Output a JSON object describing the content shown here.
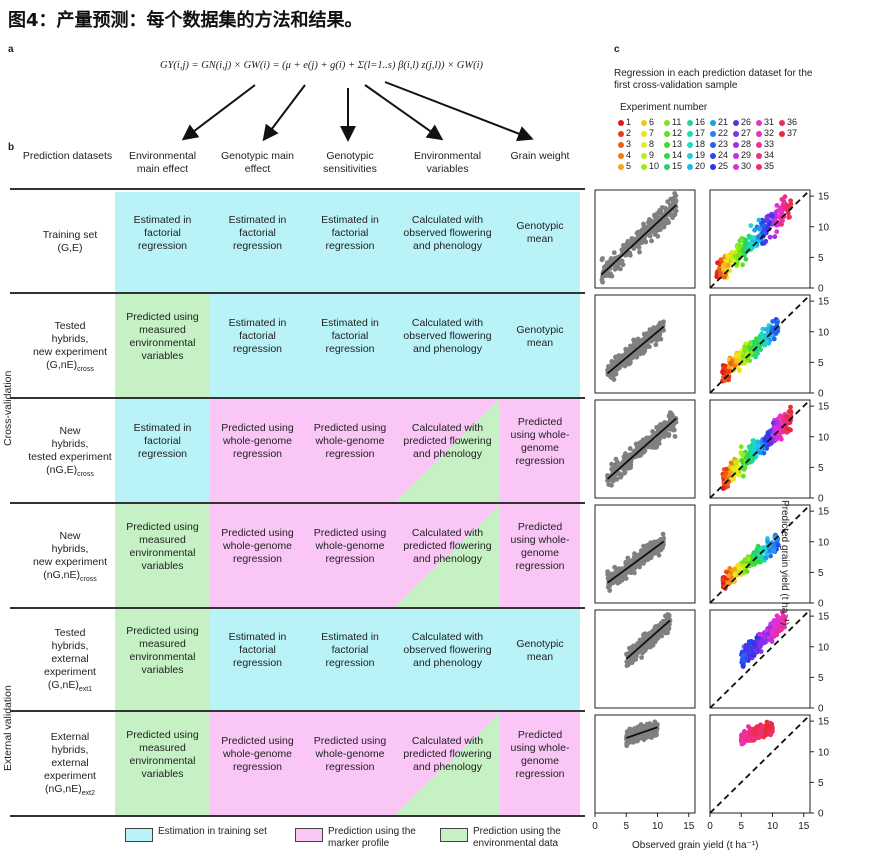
{
  "title": "图4：产量预测：每个数据集的方法和结果。",
  "panel_labels": {
    "a": "a",
    "b": "b",
    "c": "c"
  },
  "equation": "GY(i,j) = GN(i,j) × GW(i) = (μ + e(j) + g(i) + Σ(l=1..s) β(i,l) z(j,l)) × GW(i)",
  "columns": [
    "Prediction datasets",
    "Environmental main effect",
    "Genotypic main effect",
    "Genotypic sensitivities",
    "Environmental variables",
    "Grain weight"
  ],
  "rows": [
    {
      "label": [
        "Training set",
        "(G,E)"
      ],
      "cells": [
        "Estimated in factorial regression",
        "Estimated in factorial regression",
        "Estimated in factorial regression",
        "Calculated with observed flowering and phenology",
        "Genotypic mean"
      ],
      "colors": [
        "cyan",
        "cyan",
        "cyan",
        "cyan",
        "cyan"
      ]
    },
    {
      "label": [
        "Tested",
        "hybrids,",
        "new experiment",
        "(G,nE)cross"
      ],
      "cells": [
        "Predicted using measured environmental variables",
        "Estimated in factorial regression",
        "Estimated in factorial regression",
        "Calculated with observed flowering and phenology",
        "Genotypic mean"
      ],
      "colors": [
        "green",
        "cyan",
        "cyan",
        "cyan",
        "cyan"
      ]
    },
    {
      "label": [
        "New",
        "hybrids,",
        "tested experiment",
        "(nG,E)cross"
      ],
      "cells": [
        "Estimated in factorial regression",
        "Predicted using whole-genome regression",
        "Predicted using whole-genome regression",
        "Calculated with predicted flowering and phenology",
        "Predicted using whole-genome regression"
      ],
      "colors": [
        "cyan",
        "pink",
        "pink",
        "pink-green",
        "pink"
      ]
    },
    {
      "label": [
        "New",
        "hybrids,",
        "new experiment",
        "(nG,nE)cross"
      ],
      "cells": [
        "Predicted using measured environmental variables",
        "Predicted using whole-genome regression",
        "Predicted using whole-genome regression",
        "Calculated with predicted flowering and phenology",
        "Predicted using whole-genome regression"
      ],
      "colors": [
        "green",
        "pink",
        "pink",
        "pink-green",
        "pink"
      ]
    },
    {
      "label": [
        "Tested",
        "hybrids,",
        "external",
        "experiment",
        "(G,nE)ext1"
      ],
      "cells": [
        "Predicted using measured environmental variables",
        "Estimated in factorial regression",
        "Estimated in factorial regression",
        "Calculated with observed flowering and phenology",
        "Genotypic mean"
      ],
      "colors": [
        "green",
        "cyan",
        "cyan",
        "cyan",
        "cyan"
      ]
    },
    {
      "label": [
        "External",
        "hybrids,",
        "external",
        "experiment",
        "(nG,nE)ext2"
      ],
      "cells": [
        "Predicted using measured environmental variables",
        "Predicted using whole-genome regression",
        "Predicted using whole-genome regression",
        "Calculated with predicted flowering and phenology",
        "Predicted using whole-genome regression"
      ],
      "colors": [
        "green",
        "pink",
        "pink",
        "pink-green",
        "pink"
      ]
    }
  ],
  "side_labels": {
    "cross": "Cross-validation",
    "external": "External validation"
  },
  "legend": [
    {
      "label": "Estimation in training set",
      "color": "#b9f3f7"
    },
    {
      "label": "Prediction using the marker profile",
      "color": "#f9c6f5"
    },
    {
      "label": "Prediction using the environmental data",
      "color": "#c6f1c5"
    }
  ],
  "colors": {
    "cyan": "#b9f3f7",
    "pink": "#f9c6f5",
    "green": "#c6f1c5"
  },
  "panel_c": {
    "title": "Regression in each prediction dataset for the first cross-validation sample",
    "experiment_label": "Experiment number",
    "experiments": [
      {
        "n": "1",
        "c": "#e41a1c"
      },
      {
        "n": "2",
        "c": "#e8391a"
      },
      {
        "n": "3",
        "c": "#ef5b14"
      },
      {
        "n": "4",
        "c": "#f47b10"
      },
      {
        "n": "5",
        "c": "#f7a21a"
      },
      {
        "n": "6",
        "c": "#f3c61b"
      },
      {
        "n": "7",
        "c": "#f0e21c"
      },
      {
        "n": "8",
        "c": "#e2f016"
      },
      {
        "n": "9",
        "c": "#bdef17"
      },
      {
        "n": "10",
        "c": "#9dee18"
      },
      {
        "n": "11",
        "c": "#7fe61a"
      },
      {
        "n": "12",
        "c": "#5de21e"
      },
      {
        "n": "13",
        "c": "#3ddc2a"
      },
      {
        "n": "14",
        "c": "#2bd94a"
      },
      {
        "n": "15",
        "c": "#22d66b"
      },
      {
        "n": "16",
        "c": "#20d88f"
      },
      {
        "n": "17",
        "c": "#1fdbae"
      },
      {
        "n": "18",
        "c": "#1ddac9"
      },
      {
        "n": "19",
        "c": "#1ccfe2"
      },
      {
        "n": "20",
        "c": "#1cb8ec"
      },
      {
        "n": "21",
        "c": "#1e9cf0"
      },
      {
        "n": "22",
        "c": "#2280f2"
      },
      {
        "n": "23",
        "c": "#2462f2"
      },
      {
        "n": "24",
        "c": "#2848ef"
      },
      {
        "n": "25",
        "c": "#2f34ea"
      },
      {
        "n": "26",
        "c": "#5a2fe8"
      },
      {
        "n": "27",
        "c": "#8030e8"
      },
      {
        "n": "28",
        "c": "#a230e8"
      },
      {
        "n": "29",
        "c": "#c230e8"
      },
      {
        "n": "30",
        "c": "#dc2fe0"
      },
      {
        "n": "31",
        "c": "#e82fcc"
      },
      {
        "n": "32",
        "c": "#ec2fb3"
      },
      {
        "n": "33",
        "c": "#ee2f98"
      },
      {
        "n": "34",
        "c": "#ef2f80"
      },
      {
        "n": "35",
        "c": "#ef2e68"
      },
      {
        "n": "36",
        "c": "#ed2d50"
      },
      {
        "n": "37",
        "c": "#e82b3a"
      }
    ],
    "x_label": "Observed grain yield (t ha⁻¹)",
    "y_label": "Predicted grain yield (t ha⁻¹)",
    "x_ticks": [
      "0",
      "5",
      "10",
      "15"
    ],
    "y_ticks": [
      "0",
      "5",
      "10",
      "15"
    ]
  },
  "chart_data": {
    "type": "scatter",
    "axis_range": [
      0,
      16
    ],
    "grid": false,
    "rows": [
      {
        "name": "(G,E)",
        "cloud": {
          "x": [
            1,
            13
          ],
          "slope": 0.95,
          "intercept": 1.2,
          "spread": 1.6
        },
        "exp_range": [
          1,
          37
        ]
      },
      {
        "name": "(G,nE)cross",
        "cloud": {
          "x": [
            2,
            11
          ],
          "slope": 0.85,
          "intercept": 1.5,
          "spread": 1.2
        },
        "exp_range": [
          1,
          24
        ]
      },
      {
        "name": "(nG,E)cross",
        "cloud": {
          "x": [
            2,
            13
          ],
          "slope": 0.9,
          "intercept": 1.3,
          "spread": 1.5
        },
        "exp_range": [
          1,
          37
        ]
      },
      {
        "name": "(nG,nE)cross",
        "cloud": {
          "x": [
            2,
            11
          ],
          "slope": 0.75,
          "intercept": 1.8,
          "spread": 1.1
        },
        "exp_range": [
          1,
          24
        ]
      },
      {
        "name": "(G,nE)ext1",
        "cloud": {
          "x": [
            5,
            12
          ],
          "slope": 0.9,
          "intercept": 3.5,
          "spread": 1.2
        },
        "exp_range": [
          23,
          33
        ]
      },
      {
        "name": "(nG,nE)ext2",
        "cloud": {
          "x": [
            5,
            10
          ],
          "slope": 0.35,
          "intercept": 10.5,
          "spread": 0.9
        },
        "exp_range": [
          33,
          37
        ]
      }
    ]
  }
}
